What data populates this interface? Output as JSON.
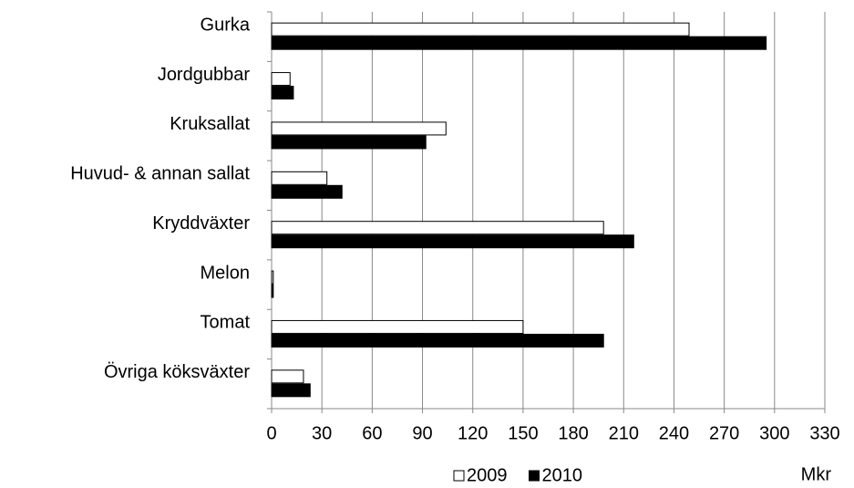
{
  "chart_data": {
    "type": "barh",
    "categories": [
      "Gurka",
      "Jordgubbar",
      "Kruksallat",
      "Huvud- & annan sallat",
      "Kryddväxter",
      "Melon",
      "Tomat",
      "Övriga köksväxter"
    ],
    "series": [
      {
        "name": "2009",
        "color": "#ffffff",
        "values": [
          249,
          11,
          104,
          33,
          198,
          1,
          150,
          19
        ]
      },
      {
        "name": "2010",
        "color": "#000000",
        "values": [
          295,
          13,
          92,
          42,
          216,
          1,
          198,
          23
        ]
      }
    ],
    "xlim": [
      0,
      330
    ],
    "xticks": [
      0,
      30,
      60,
      90,
      120,
      150,
      180,
      210,
      240,
      270,
      300,
      330
    ],
    "x_label": "Mkr",
    "grid": true,
    "legend": "bottom"
  }
}
